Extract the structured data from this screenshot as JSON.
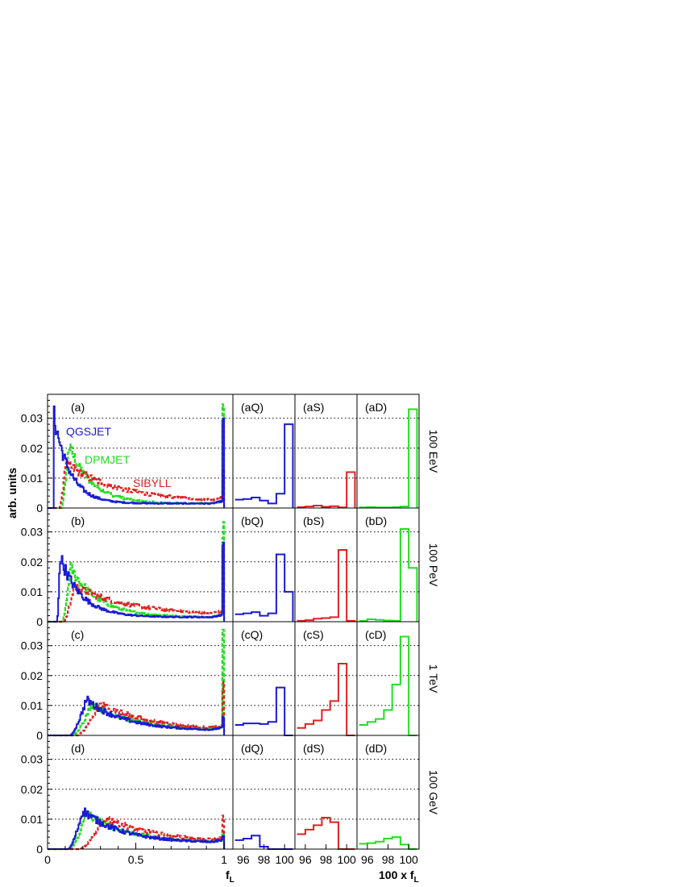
{
  "chart_data": {
    "type": "histogram-grid",
    "ylabel": "arb. units",
    "xlabel_main": "f",
    "xlabel_main_sub": "L",
    "xlabel_zoom": "100 x f",
    "xlabel_zoom_sub": "L",
    "main_xlim": [
      0,
      1.05
    ],
    "main_xticks": [
      "0",
      "0.5",
      "1"
    ],
    "main_xtick_values": [
      0,
      0.5,
      1
    ],
    "zoom_xlim": [
      95,
      101
    ],
    "zoom_xticks": [
      "96",
      "98",
      "100"
    ],
    "zoom_xtick_values": [
      96,
      98,
      100
    ],
    "ylim": [
      0,
      0.038
    ],
    "yticks": [
      "0",
      "0.01",
      "0.02",
      "0.03"
    ],
    "ytick_values": [
      0,
      0.01,
      0.02,
      0.03
    ],
    "grid": "horizontal dotted at y ticks",
    "colors": {
      "QGSJET": "#1a1ad4",
      "DPMJET": "#22dd22",
      "SIBYLL": "#e02020"
    },
    "legend": [
      {
        "name": "QGSJET",
        "color": "#1a1ad4"
      },
      {
        "name": "DPMJET",
        "color": "#22dd22"
      },
      {
        "name": "SIBYLL",
        "color": "#e02020"
      }
    ],
    "rows": [
      {
        "energy": "100 EeV",
        "label": "(a)",
        "zoom_labels": [
          "(aQ)",
          "(aS)",
          "(aD)"
        ],
        "main": {
          "QGSJET": {
            "peak_x": 0.03,
            "peak_y": 0.033,
            "spread": 0.09,
            "tail": 0.0015,
            "spike": 0.028
          },
          "DPMJET": {
            "peak_x": 0.12,
            "peak_y": 0.021,
            "spread": 0.13,
            "tail": 0.0015,
            "spike": 0.033
          },
          "SIBYLL": {
            "peak_x": 0.1,
            "peak_y": 0.015,
            "spread": 0.3,
            "tail": 0.002,
            "spike": 0.012
          }
        },
        "zoom": {
          "Q": [
            0.0028,
            0.003,
            0.0035,
            0.0025,
            0.0015,
            0.0048,
            0.028
          ],
          "S": [
            0.0003,
            0.0005,
            0.0008,
            0.0004,
            0.0006,
            0.0002,
            0.012
          ],
          "D": [
            0.0002,
            0.0003,
            0.0002,
            0.0002,
            0.0003,
            0.0005,
            0.033
          ]
        }
      },
      {
        "energy": "100 PeV",
        "label": "(b)",
        "zoom_labels": [
          "(bQ)",
          "(bS)",
          "(bD)"
        ],
        "main": {
          "QGSJET": {
            "peak_x": 0.07,
            "peak_y": 0.022,
            "spread": 0.12,
            "tail": 0.0015,
            "spike": 0.027
          },
          "DPMJET": {
            "peak_x": 0.13,
            "peak_y": 0.018,
            "spread": 0.16,
            "tail": 0.0015,
            "spike": 0.031
          },
          "SIBYLL": {
            "peak_x": 0.15,
            "peak_y": 0.012,
            "spread": 0.32,
            "tail": 0.002,
            "spike": 0.023
          }
        },
        "zoom": {
          "Q": [
            0.0025,
            0.0028,
            0.0032,
            0.002,
            0.0028,
            0.0225,
            0.01
          ],
          "S": [
            0.0003,
            0.0005,
            0.001,
            0.0012,
            0.0015,
            0.024,
            0.0003
          ],
          "D": [
            0.0003,
            0.0008,
            0.0006,
            0.0004,
            0.0003,
            0.031,
            0.018
          ]
        }
      },
      {
        "energy": "1 TeV",
        "label": "(c)",
        "zoom_labels": [
          "(cQ)",
          "(cS)",
          "(cD)"
        ],
        "main": {
          "QGSJET": {
            "peak_x": 0.22,
            "peak_y": 0.012,
            "spread": 0.22,
            "tail": 0.0015,
            "spike": 0.0055
          },
          "DPMJET": {
            "peak_x": 0.25,
            "peak_y": 0.0105,
            "spread": 0.25,
            "tail": 0.0015,
            "spike": 0.033
          },
          "SIBYLL": {
            "peak_x": 0.3,
            "peak_y": 0.0105,
            "spread": 0.3,
            "tail": 0.0015,
            "spike": 0.016
          }
        },
        "zoom": {
          "Q": [
            0.0035,
            0.004,
            0.004,
            0.0038,
            0.0045,
            0.016,
            0
          ],
          "S": [
            0.0025,
            0.0038,
            0.005,
            0.0085,
            0.0115,
            0.024,
            0
          ],
          "D": [
            0.0035,
            0.0045,
            0.0055,
            0.0085,
            0.017,
            0.033,
            0
          ]
        }
      },
      {
        "energy": "100 GeV",
        "label": "(d)",
        "zoom_labels": [
          "(dQ)",
          "(dS)",
          "(dD)"
        ],
        "main": {
          "QGSJET": {
            "peak_x": 0.2,
            "peak_y": 0.013,
            "spread": 0.22,
            "tail": 0.002,
            "spike": 0.004
          },
          "DPMJET": {
            "peak_x": 0.22,
            "peak_y": 0.012,
            "spread": 0.24,
            "tail": 0.002,
            "spike": 0.006
          },
          "SIBYLL": {
            "peak_x": 0.33,
            "peak_y": 0.0105,
            "spread": 0.3,
            "tail": 0.002,
            "spike": 0.0105
          }
        },
        "zoom": {
          "Q": [
            0.003,
            0.0035,
            0.0045,
            0.0008,
            0,
            0,
            0
          ],
          "S": [
            0.005,
            0.0065,
            0.008,
            0.0105,
            0.009,
            0,
            0
          ],
          "D": [
            0.0018,
            0.002,
            0.0025,
            0.0035,
            0.004,
            0.0015,
            0
          ]
        }
      }
    ]
  }
}
